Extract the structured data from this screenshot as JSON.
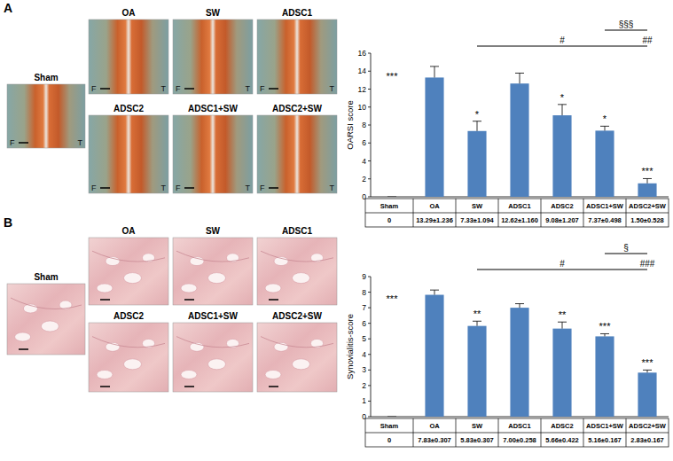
{
  "figure": {
    "panels": [
      {
        "label": "A",
        "images": [
          {
            "title": "Sham",
            "left_mark": "F",
            "right_mark": "T"
          },
          {
            "title": "OA",
            "left_mark": "F",
            "right_mark": "T"
          },
          {
            "title": "SW",
            "left_mark": "F",
            "right_mark": "T"
          },
          {
            "title": "ADSC1",
            "left_mark": "F",
            "right_mark": "T"
          },
          {
            "title": "ADSC2",
            "left_mark": "F",
            "right_mark": "T"
          },
          {
            "title": "ADSC1+SW",
            "left_mark": "F",
            "right_mark": "T"
          },
          {
            "title": "ADSC2+SW",
            "left_mark": "F",
            "right_mark": "T"
          }
        ]
      },
      {
        "label": "B",
        "images": [
          {
            "title": "Sham"
          },
          {
            "title": "OA"
          },
          {
            "title": "SW"
          },
          {
            "title": "ADSC1"
          },
          {
            "title": "ADSC2"
          },
          {
            "title": "ADSC1+SW"
          },
          {
            "title": "ADSC2+SW"
          }
        ]
      }
    ]
  },
  "chart_data": [
    {
      "type": "bar",
      "ylabel": "OARSI score",
      "categories": [
        "Sham",
        "OA",
        "SW",
        "ADSC1",
        "ADSC2",
        "ADSC1+SW",
        "ADSC2+SW"
      ],
      "values": [
        0,
        13.29,
        7.33,
        12.62,
        9.08,
        7.37,
        1.5
      ],
      "errors": [
        0,
        1.236,
        1.094,
        1.16,
        1.207,
        0.498,
        0.528
      ],
      "value_labels": [
        "0",
        "13.29±1.236",
        "7.33±1.094",
        "12.62±1.160",
        "9.08±1.207",
        "7.37±0.498",
        "1.50±0.528"
      ],
      "data_labels": true,
      "color": "#4f81bd",
      "ylim": [
        0,
        16
      ],
      "yticks": [
        0,
        2,
        4,
        6,
        8,
        10,
        12,
        14,
        16
      ],
      "grid": false,
      "markers": [
        {
          "category": "Sham",
          "text": "***"
        },
        {
          "category": "SW",
          "text": "*"
        },
        {
          "category": "ADSC2",
          "text": "*"
        },
        {
          "category": "ADSC1+SW",
          "text": "*"
        },
        {
          "category": "ADSC2+SW",
          "text": "***"
        }
      ],
      "brackets": [
        {
          "from": "SW",
          "to": "ADSC2+SW",
          "text": "#",
          "end_text": "##"
        },
        {
          "from": "ADSC1+SW",
          "to": "ADSC2+SW",
          "text": "§§§"
        }
      ]
    },
    {
      "type": "bar",
      "ylabel": "Synovialitis-score",
      "categories": [
        "Sham",
        "OA",
        "SW",
        "ADSC1",
        "ADSC2",
        "ADSC1+SW",
        "ADSC2+SW"
      ],
      "values": [
        0,
        7.83,
        5.83,
        7.0,
        5.66,
        5.16,
        2.83
      ],
      "errors": [
        0,
        0.307,
        0.307,
        0.258,
        0.422,
        0.167,
        0.167
      ],
      "value_labels": [
        "0",
        "7.83±0.307",
        "5.83±0.307",
        "7.00±0.258",
        "5.66±0.422",
        "5.16±0.167",
        "2.83±0.167"
      ],
      "data_labels": true,
      "color": "#4f81bd",
      "ylim": [
        0,
        9
      ],
      "yticks": [
        0,
        1,
        2,
        3,
        4,
        5,
        6,
        7,
        8,
        9
      ],
      "grid": false,
      "markers": [
        {
          "category": "Sham",
          "text": "***"
        },
        {
          "category": "SW",
          "text": "**"
        },
        {
          "category": "ADSC2",
          "text": "**"
        },
        {
          "category": "ADSC1+SW",
          "text": "***"
        },
        {
          "category": "ADSC2+SW",
          "text": "***"
        }
      ],
      "brackets": [
        {
          "from": "SW",
          "to": "ADSC2+SW",
          "text": "#",
          "end_text": "###"
        },
        {
          "from": "ADSC1+SW",
          "to": "ADSC2+SW",
          "text": "§"
        }
      ]
    }
  ]
}
